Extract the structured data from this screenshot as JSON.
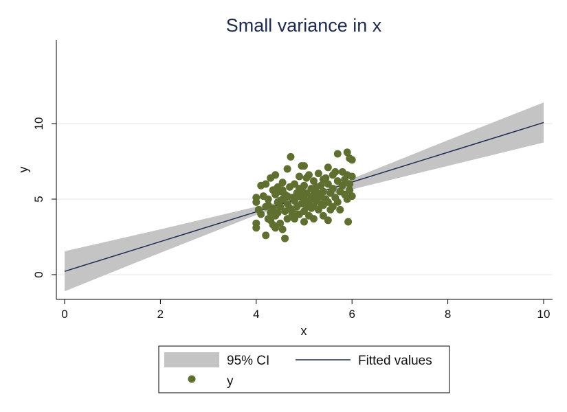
{
  "chart_data": {
    "type": "scatter",
    "title": "Small variance in x",
    "xlabel": "x",
    "ylabel": "y",
    "xlim": [
      0,
      10
    ],
    "ylim": [
      -1.6,
      15.5
    ],
    "xticks": [
      0,
      2,
      4,
      6,
      8,
      10
    ],
    "yticks": [
      0,
      5,
      10
    ],
    "xtick_labels": [
      "0",
      "2",
      "4",
      "6",
      "8",
      "10"
    ],
    "ytick_labels": [
      "0",
      "5",
      "10"
    ],
    "grid": "horizontal",
    "legend_position": "bottom",
    "colors": {
      "points": "#5f6f30",
      "fit_line": "#1e2b4f",
      "ci_band": "#c4c4c4",
      "grid": "#e6e6e6"
    },
    "fit": {
      "intercept": 0.22,
      "slope": 0.985
    },
    "ci_band": [
      {
        "x": 0,
        "lower": -1.1,
        "upper": 1.55
      },
      {
        "x": 2,
        "lower": 1.45,
        "upper": 3.0
      },
      {
        "x": 4,
        "lower": 3.95,
        "upper": 4.5
      },
      {
        "x": 5,
        "lower": 4.85,
        "upper": 5.1
      },
      {
        "x": 6,
        "lower": 5.65,
        "upper": 6.35
      },
      {
        "x": 8,
        "lower": 7.2,
        "upper": 8.9
      },
      {
        "x": 10,
        "lower": 8.75,
        "upper": 11.4
      }
    ],
    "series": [
      {
        "name": "y",
        "points": [
          [
            4.0,
            3.1
          ],
          [
            4.0,
            3.4
          ],
          [
            4.0,
            4.8
          ],
          [
            4.0,
            5.1
          ],
          [
            4.05,
            4.3
          ],
          [
            4.1,
            5.9
          ],
          [
            4.1,
            4.0
          ],
          [
            4.15,
            5.2
          ],
          [
            4.2,
            6.0
          ],
          [
            4.2,
            4.5
          ],
          [
            4.2,
            2.6
          ],
          [
            4.25,
            3.7
          ],
          [
            4.25,
            5.0
          ],
          [
            4.3,
            6.4
          ],
          [
            4.3,
            4.1
          ],
          [
            4.3,
            3.6
          ],
          [
            4.35,
            5.6
          ],
          [
            4.35,
            4.4
          ],
          [
            4.4,
            6.6
          ],
          [
            4.4,
            5.3
          ],
          [
            4.4,
            3.9
          ],
          [
            4.4,
            3.1
          ],
          [
            4.45,
            4.8
          ],
          [
            4.45,
            4.1
          ],
          [
            4.5,
            5.5
          ],
          [
            4.5,
            4.5
          ],
          [
            4.5,
            3.4
          ],
          [
            4.55,
            6.1
          ],
          [
            4.55,
            5.0
          ],
          [
            4.55,
            3.0
          ],
          [
            4.6,
            5.3
          ],
          [
            4.6,
            4.2
          ],
          [
            4.6,
            2.4
          ],
          [
            4.65,
            7.0
          ],
          [
            4.65,
            4.7
          ],
          [
            4.65,
            3.7
          ],
          [
            4.7,
            5.8
          ],
          [
            4.7,
            4.4
          ],
          [
            4.72,
            7.8
          ],
          [
            4.75,
            5.1
          ],
          [
            4.75,
            4.0
          ],
          [
            4.8,
            6.0
          ],
          [
            4.8,
            4.9
          ],
          [
            4.8,
            3.7
          ],
          [
            4.85,
            5.4
          ],
          [
            4.85,
            4.5
          ],
          [
            4.9,
            6.5
          ],
          [
            4.9,
            5.2
          ],
          [
            4.9,
            4.0
          ],
          [
            4.95,
            7.2
          ],
          [
            4.95,
            4.7
          ],
          [
            5.0,
            7.2
          ],
          [
            5.0,
            5.9
          ],
          [
            5.0,
            5.0
          ],
          [
            5.0,
            4.2
          ],
          [
            5.0,
            3.5
          ],
          [
            5.05,
            6.4
          ],
          [
            5.05,
            5.4
          ],
          [
            5.1,
            6.6
          ],
          [
            5.1,
            4.8
          ],
          [
            5.1,
            3.9
          ],
          [
            5.15,
            5.7
          ],
          [
            5.15,
            5.1
          ],
          [
            5.2,
            6.2
          ],
          [
            5.2,
            4.5
          ],
          [
            5.2,
            3.7
          ],
          [
            5.25,
            5.5
          ],
          [
            5.25,
            4.9
          ],
          [
            5.3,
            6.7
          ],
          [
            5.3,
            5.2
          ],
          [
            5.3,
            4.3
          ],
          [
            5.35,
            5.9
          ],
          [
            5.35,
            4.7
          ],
          [
            5.4,
            6.3
          ],
          [
            5.4,
            5.5
          ],
          [
            5.4,
            3.9
          ],
          [
            5.45,
            5.0
          ],
          [
            5.5,
            7.1
          ],
          [
            5.5,
            6.0
          ],
          [
            5.5,
            4.8
          ],
          [
            5.5,
            3.6
          ],
          [
            5.55,
            5.4
          ],
          [
            5.55,
            4.3
          ],
          [
            5.6,
            6.6
          ],
          [
            5.6,
            5.7
          ],
          [
            5.65,
            5.1
          ],
          [
            5.7,
            8.0
          ],
          [
            5.7,
            6.2
          ],
          [
            5.7,
            4.8
          ],
          [
            5.75,
            5.5
          ],
          [
            5.75,
            4.3
          ],
          [
            5.8,
            6.8
          ],
          [
            5.8,
            5.9
          ],
          [
            5.85,
            5.3
          ],
          [
            5.9,
            8.1
          ],
          [
            5.9,
            6.6
          ],
          [
            5.9,
            5.0
          ],
          [
            5.92,
            3.5
          ],
          [
            5.95,
            7.7
          ],
          [
            5.95,
            6.0
          ],
          [
            5.95,
            5.6
          ],
          [
            6.0,
            7.6
          ],
          [
            6.0,
            6.5
          ],
          [
            6.0,
            5.2
          ],
          [
            4.35,
            3.3
          ],
          [
            4.55,
            5.6
          ],
          [
            4.75,
            4.2
          ],
          [
            4.95,
            5.6
          ],
          [
            5.15,
            4.4
          ],
          [
            5.35,
            5.2
          ],
          [
            5.6,
            4.5
          ],
          [
            5.05,
            4.5
          ],
          [
            4.25,
            4.6
          ],
          [
            4.45,
            5.8
          ],
          [
            4.85,
            4.0
          ],
          [
            5.25,
            5.8
          ],
          [
            5.45,
            6.4
          ],
          [
            5.65,
            6.8
          ],
          [
            5.85,
            6.3
          ],
          [
            4.65,
            5.2
          ],
          [
            5.0,
            5.3
          ],
          [
            5.2,
            5.3
          ],
          [
            4.5,
            4.9
          ],
          [
            5.4,
            4.6
          ],
          [
            4.9,
            5.7
          ]
        ]
      }
    ],
    "legend": [
      {
        "label": "95% CI"
      },
      {
        "label": "Fitted values"
      },
      {
        "label": "y"
      }
    ]
  }
}
